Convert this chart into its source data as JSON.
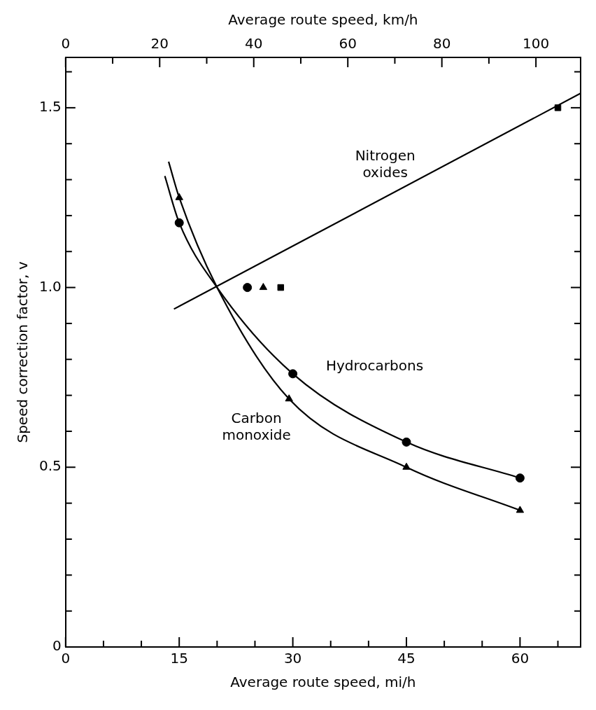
{
  "chart_data": {
    "type": "line",
    "xlabel": "Average route speed, mi/h",
    "x2label": "Average route speed, km/h",
    "ylabel": "Speed correction factor, v",
    "xlim": [
      0,
      68
    ],
    "xticks": [
      0,
      {
        "value": 5,
        "label": null
      },
      {
        "value": 10,
        "label": null
      },
      15,
      {
        "value": 20,
        "label": null
      },
      {
        "value": 25,
        "label": null
      },
      30,
      {
        "value": 35,
        "label": null
      },
      {
        "value": 40,
        "label": null
      },
      45,
      {
        "value": 50,
        "label": null
      },
      {
        "value": 55,
        "label": null
      },
      60,
      {
        "value": 65,
        "label": null
      }
    ],
    "x2lim": [
      0,
      109.5
    ],
    "x2ticks": [
      0,
      {
        "value": 10,
        "label": null
      },
      20,
      {
        "value": 30,
        "label": null
      },
      40,
      {
        "value": 50,
        "label": null
      },
      60,
      {
        "value": 70,
        "label": null
      },
      80,
      {
        "value": 90,
        "label": null
      },
      100
    ],
    "ylim": [
      0,
      1.64
    ],
    "yticks": [
      0,
      {
        "value": 0.1,
        "label": null
      },
      {
        "value": 0.2,
        "label": null
      },
      {
        "value": 0.3,
        "label": null
      },
      {
        "value": 0.4,
        "label": null
      },
      {
        "value": 0.5,
        "label": "0.5"
      },
      {
        "value": 0.6,
        "label": null
      },
      {
        "value": 0.7,
        "label": null
      },
      {
        "value": 0.8,
        "label": null
      },
      {
        "value": 0.9,
        "label": null
      },
      {
        "value": 1,
        "label": "1.0"
      },
      {
        "value": 1.1,
        "label": null
      },
      {
        "value": 1.2,
        "label": null
      },
      {
        "value": 1.3,
        "label": null
      },
      {
        "value": 1.4,
        "label": null
      },
      1.5,
      {
        "value": 1.6,
        "label": null
      }
    ],
    "grid": false,
    "legend": false,
    "series": [
      {
        "name": "Hydrocarbons",
        "color": "#000000",
        "marker": "none",
        "x": [
          13.1,
          15,
          20,
          30,
          45,
          60
        ],
        "values": [
          1.31,
          1.18,
          1.0,
          0.76,
          0.57,
          0.47
        ]
      },
      {
        "name": "Carbon monoxide",
        "color": "#000000",
        "marker": "none",
        "x": [
          13.6,
          15,
          20,
          29.5,
          45,
          60
        ],
        "values": [
          1.35,
          1.25,
          1.0,
          0.69,
          0.5,
          0.38
        ]
      },
      {
        "name": "Nitrogen oxides",
        "color": "#000000",
        "marker": "none",
        "x": [
          14.3,
          68
        ],
        "values": [
          0.94,
          1.54
        ]
      },
      {
        "type": "scatter",
        "color": "#000000",
        "marker": "circle",
        "x": [
          15,
          30,
          45,
          60,
          24
        ],
        "values": [
          1.18,
          0.76,
          0.57,
          0.47,
          1.0
        ]
      },
      {
        "type": "scatter",
        "color": "#000000",
        "marker": "triangle",
        "x": [
          15,
          29.5,
          45,
          60,
          26.1
        ],
        "values": [
          1.25,
          0.69,
          0.5,
          0.38,
          1.0
        ]
      },
      {
        "type": "scatter",
        "color": "#000000",
        "marker": "square",
        "x": [
          65,
          28.4
        ],
        "values": [
          1.5,
          1.0
        ]
      }
    ]
  }
}
